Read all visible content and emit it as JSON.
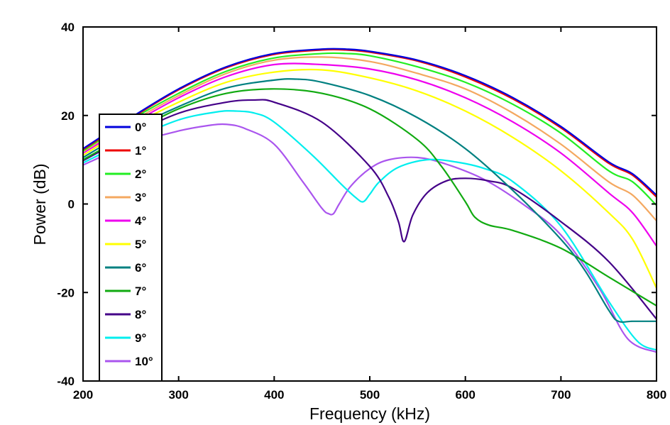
{
  "chart_data": {
    "type": "line",
    "title": "",
    "xlabel": "Frequency (kHz)",
    "ylabel": "Power (dB)",
    "xlim": [
      200,
      800
    ],
    "ylim": [
      -40,
      40
    ],
    "xticks": [
      200,
      300,
      400,
      500,
      600,
      700,
      800
    ],
    "yticks": [
      -40,
      -20,
      0,
      20,
      40
    ],
    "xtick_labels": [
      "200",
      "300",
      "400",
      "500",
      "600",
      "700",
      "800"
    ],
    "ytick_labels": [
      "-40",
      "-20",
      "0",
      "20",
      "40"
    ],
    "grid": false,
    "legend_position": "left",
    "series": [
      {
        "name": "0°",
        "color": "#0000dd",
        "x": [
          200,
          250,
          300,
          350,
          400,
          450,
          475,
          500,
          550,
          600,
          650,
          700,
          750,
          775,
          800
        ],
        "y": [
          12.5,
          19.5,
          26,
          31,
          34,
          35,
          35,
          34.5,
          32.5,
          29,
          24,
          17.5,
          9.5,
          6.8,
          2
        ]
      },
      {
        "name": "1°",
        "color": "#ee0000",
        "x": [
          200,
          250,
          300,
          350,
          400,
          450,
          475,
          500,
          550,
          600,
          650,
          700,
          750,
          775,
          800
        ],
        "y": [
          12.3,
          19.3,
          25.8,
          30.8,
          33.8,
          34.8,
          34.8,
          34.3,
          32.3,
          28.7,
          23.7,
          17.2,
          9.2,
          6.5,
          1.6
        ]
      },
      {
        "name": "2°",
        "color": "#22ee22",
        "x": [
          200,
          250,
          300,
          350,
          400,
          450,
          475,
          500,
          550,
          600,
          650,
          700,
          750,
          775,
          800
        ],
        "y": [
          12,
          19,
          25,
          30,
          33,
          34,
          34,
          33.5,
          31,
          27.5,
          22.5,
          16,
          7.5,
          5,
          -0.3
        ]
      },
      {
        "name": "3°",
        "color": "#f4a860",
        "x": [
          200,
          250,
          300,
          350,
          400,
          450,
          500,
          550,
          600,
          650,
          700,
          750,
          775,
          800
        ],
        "y": [
          11.8,
          18.5,
          24.5,
          29.5,
          32.5,
          33.2,
          32.2,
          29.5,
          26,
          20.5,
          13.5,
          5,
          2,
          -3.8
        ]
      },
      {
        "name": "4°",
        "color": "#ee00ee",
        "x": [
          200,
          250,
          300,
          350,
          400,
          450,
          500,
          550,
          600,
          650,
          700,
          750,
          775,
          800
        ],
        "y": [
          11.5,
          18,
          24,
          28.8,
          31.5,
          31.5,
          30.5,
          28,
          24,
          18.5,
          11.5,
          2.5,
          -2,
          -9.5
        ]
      },
      {
        "name": "5°",
        "color": "#ffff00",
        "x": [
          200,
          250,
          300,
          350,
          400,
          450,
          500,
          550,
          600,
          650,
          700,
          750,
          775,
          800
        ],
        "y": [
          11,
          17.5,
          23,
          27.5,
          29.8,
          30.3,
          28.5,
          25.5,
          21,
          15,
          7.5,
          -2,
          -8,
          -19
        ]
      },
      {
        "name": "6°",
        "color": "#008080",
        "x": [
          200,
          250,
          300,
          350,
          400,
          425,
          450,
          500,
          550,
          600,
          650,
          700,
          725,
          750,
          760,
          775,
          800
        ],
        "y": [
          10.5,
          16.8,
          22,
          26.2,
          28,
          28.2,
          27.5,
          24.5,
          19.5,
          12.5,
          3,
          -8,
          -15,
          -24,
          -26.5,
          -26.5,
          -26.5
        ]
      },
      {
        "name": "7°",
        "color": "#11aa11",
        "x": [
          200,
          250,
          300,
          350,
          400,
          450,
          500,
          550,
          575,
          600,
          610,
          625,
          650,
          700,
          750,
          800
        ],
        "y": [
          10,
          16,
          21.5,
          25,
          26,
          25,
          21.5,
          14.5,
          8.5,
          0.5,
          -3,
          -4.8,
          -6,
          -10,
          -16.5,
          -23
        ]
      },
      {
        "name": "8°",
        "color": "#440088",
        "x": [
          200,
          250,
          300,
          350,
          380,
          400,
          450,
          500,
          520,
          530,
          536,
          545,
          560,
          580,
          600,
          625,
          650,
          700,
          750,
          800
        ],
        "y": [
          9.8,
          15.5,
          20.5,
          23,
          23.5,
          23,
          18.5,
          8.5,
          1.5,
          -4,
          -8.5,
          -2.5,
          2.5,
          5.2,
          5.8,
          5.2,
          3.5,
          -4,
          -13,
          -26
        ]
      },
      {
        "name": "9°",
        "color": "#00eeee",
        "x": [
          200,
          250,
          300,
          340,
          360,
          380,
          400,
          440,
          470,
          485,
          493,
          500,
          510,
          530,
          560,
          590,
          620,
          650,
          700,
          750,
          780,
          800
        ],
        "y": [
          9.3,
          14.5,
          19,
          20.8,
          21,
          20.5,
          18.5,
          11,
          4.5,
          1.5,
          0.5,
          2.2,
          5,
          8.3,
          10,
          9.5,
          8,
          5,
          -5,
          -22,
          -31,
          -33
        ]
      },
      {
        "name": "10°",
        "color": "#aa55ee",
        "x": [
          200,
          250,
          300,
          330,
          350,
          370,
          400,
          430,
          450,
          457,
          462,
          468,
          480,
          500,
          520,
          550,
          580,
          620,
          660,
          700,
          740,
          770,
          800
        ],
        "y": [
          8.8,
          13.5,
          16.5,
          17.7,
          18,
          17,
          13.5,
          5,
          -1,
          -2.2,
          -2.2,
          0,
          4,
          8,
          10,
          10.5,
          9,
          5.5,
          0,
          -7,
          -19,
          -30.5,
          -33.5
        ]
      }
    ]
  }
}
